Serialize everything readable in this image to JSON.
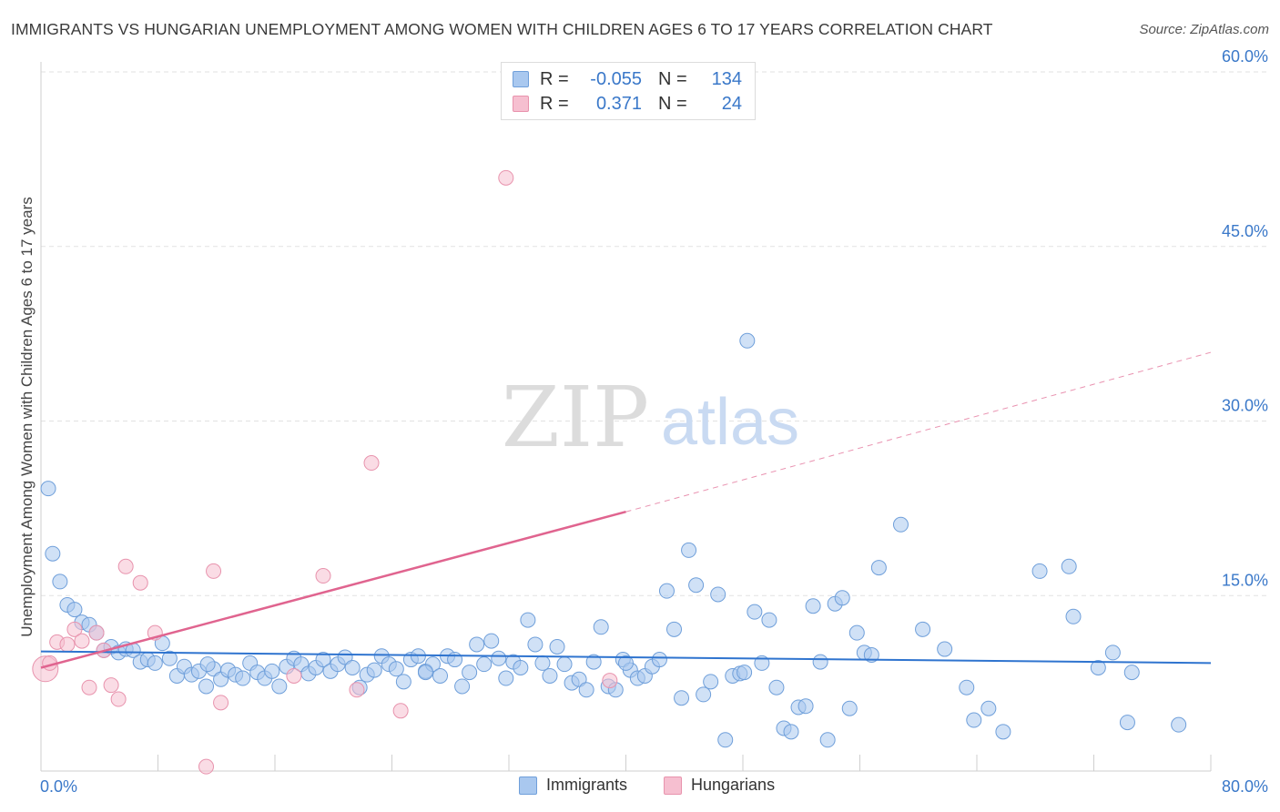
{
  "title": "IMMIGRANTS VS HUNGARIAN UNEMPLOYMENT AMONG WOMEN WITH CHILDREN AGES 6 TO 17 YEARS CORRELATION CHART",
  "source": "Source: ZipAtlas.com",
  "watermark": {
    "zip": "ZIP",
    "atlas": "atlas"
  },
  "colors": {
    "immigrants_fill": "#a9c8ef",
    "immigrants_stroke": "#6f9fda",
    "immigrants_line": "#2f74cf",
    "hungarians_fill": "#f6bfd0",
    "hungarians_stroke": "#e893ad",
    "hungarians_line": "#e0648f",
    "tick_label": "#3a78c9",
    "grid": "#e2e2e2"
  },
  "legend_top": [
    {
      "name": "Immigrants",
      "r_label": "R =",
      "r_value": "-0.055",
      "n_label": "N =",
      "n_value": "134"
    },
    {
      "name": "Hungarians",
      "r_label": "R =",
      "r_value": "0.371",
      "n_label": "N =",
      "n_value": "24"
    }
  ],
  "legend_bottom": [
    "Immigrants",
    "Hungarians"
  ],
  "chart_data": {
    "type": "scatter",
    "title": "IMMIGRANTS VS HUNGARIAN UNEMPLOYMENT AMONG WOMEN WITH CHILDREN AGES 6 TO 17 YEARS CORRELATION CHART",
    "xlabel": "",
    "ylabel": "Unemployment Among Women with Children Ages 6 to 17 years",
    "xlim": [
      0,
      80
    ],
    "ylim": [
      0,
      60
    ],
    "x_tick_labels": [
      "0.0%",
      "80.0%"
    ],
    "y_ticks": [
      15,
      30,
      45,
      60
    ],
    "y_tick_labels": [
      "15.0%",
      "30.0%",
      "45.0%",
      "60.0%"
    ],
    "series": [
      {
        "name": "Immigrants",
        "r": -0.055,
        "n": 134,
        "trend": {
          "x0": 0,
          "y0": 10.2,
          "x1": 80,
          "y1": 9.2
        },
        "points": [
          [
            0.5,
            24.2
          ],
          [
            0.8,
            18.6
          ],
          [
            1.3,
            16.2
          ],
          [
            1.8,
            14.2
          ],
          [
            2.3,
            13.8
          ],
          [
            2.8,
            12.7
          ],
          [
            3.3,
            12.5
          ],
          [
            3.8,
            11.8
          ],
          [
            4.3,
            10.3
          ],
          [
            4.8,
            10.6
          ],
          [
            5.3,
            10.1
          ],
          [
            5.8,
            10.4
          ],
          [
            6.3,
            10.3
          ],
          [
            6.8,
            9.3
          ],
          [
            7.3,
            9.5
          ],
          [
            7.8,
            9.2
          ],
          [
            8.3,
            10.9
          ],
          [
            8.8,
            9.6
          ],
          [
            9.3,
            8.1
          ],
          [
            9.8,
            8.9
          ],
          [
            10.3,
            8.2
          ],
          [
            10.8,
            8.5
          ],
          [
            11.3,
            7.2
          ],
          [
            11.8,
            8.7
          ],
          [
            12.3,
            7.8
          ],
          [
            12.8,
            8.6
          ],
          [
            13.3,
            8.2
          ],
          [
            13.8,
            7.9
          ],
          [
            14.3,
            9.2
          ],
          [
            14.8,
            8.4
          ],
          [
            15.3,
            7.9
          ],
          [
            15.8,
            8.5
          ],
          [
            16.3,
            7.2
          ],
          [
            16.8,
            8.9
          ],
          [
            17.3,
            9.6
          ],
          [
            17.8,
            9.1
          ],
          [
            18.3,
            8.3
          ],
          [
            18.8,
            8.8
          ],
          [
            19.3,
            9.5
          ],
          [
            19.8,
            8.5
          ],
          [
            20.3,
            9.1
          ],
          [
            20.8,
            9.7
          ],
          [
            21.3,
            8.8
          ],
          [
            21.8,
            7.1
          ],
          [
            22.3,
            8.2
          ],
          [
            22.8,
            8.6
          ],
          [
            23.3,
            9.8
          ],
          [
            23.8,
            9.1
          ],
          [
            24.3,
            8.7
          ],
          [
            24.8,
            7.6
          ],
          [
            25.3,
            9.5
          ],
          [
            25.8,
            9.8
          ],
          [
            26.3,
            8.5
          ],
          [
            26.8,
            9.1
          ],
          [
            27.3,
            8.1
          ],
          [
            27.8,
            9.8
          ],
          [
            28.3,
            9.5
          ],
          [
            28.8,
            7.2
          ],
          [
            29.3,
            8.4
          ],
          [
            29.8,
            10.8
          ],
          [
            30.3,
            9.1
          ],
          [
            30.8,
            11.1
          ],
          [
            31.3,
            9.6
          ],
          [
            31.8,
            7.9
          ],
          [
            32.3,
            9.3
          ],
          [
            32.8,
            8.8
          ],
          [
            33.3,
            12.9
          ],
          [
            33.8,
            10.8
          ],
          [
            34.3,
            9.2
          ],
          [
            34.8,
            8.1
          ],
          [
            35.3,
            10.6
          ],
          [
            35.8,
            9.1
          ],
          [
            36.3,
            7.5
          ],
          [
            36.8,
            7.8
          ],
          [
            37.3,
            6.9
          ],
          [
            37.8,
            9.3
          ],
          [
            38.3,
            12.3
          ],
          [
            38.8,
            7.2
          ],
          [
            39.3,
            6.9
          ],
          [
            39.8,
            9.5
          ],
          [
            40.3,
            8.6
          ],
          [
            40.8,
            7.9
          ],
          [
            41.3,
            8.1
          ],
          [
            41.8,
            8.9
          ],
          [
            42.3,
            9.5
          ],
          [
            42.8,
            15.4
          ],
          [
            43.3,
            12.1
          ],
          [
            43.8,
            6.2
          ],
          [
            44.3,
            18.9
          ],
          [
            44.8,
            15.9
          ],
          [
            45.3,
            6.5
          ],
          [
            45.8,
            7.6
          ],
          [
            46.3,
            15.1
          ],
          [
            46.8,
            2.6
          ],
          [
            47.3,
            8.1
          ],
          [
            47.8,
            8.3
          ],
          [
            48.3,
            36.9
          ],
          [
            48.8,
            13.6
          ],
          [
            49.3,
            9.2
          ],
          [
            49.8,
            12.9
          ],
          [
            50.3,
            7.1
          ],
          [
            50.8,
            3.6
          ],
          [
            51.3,
            3.3
          ],
          [
            51.8,
            5.4
          ],
          [
            52.3,
            5.5
          ],
          [
            52.8,
            14.1
          ],
          [
            53.3,
            9.3
          ],
          [
            53.8,
            2.6
          ],
          [
            54.3,
            14.3
          ],
          [
            54.8,
            14.8
          ],
          [
            55.3,
            5.3
          ],
          [
            55.8,
            11.8
          ],
          [
            56.3,
            10.1
          ],
          [
            56.8,
            9.9
          ],
          [
            57.3,
            17.4
          ],
          [
            58.8,
            21.1
          ],
          [
            60.3,
            12.1
          ],
          [
            61.8,
            10.4
          ],
          [
            63.3,
            7.1
          ],
          [
            63.8,
            4.3
          ],
          [
            64.8,
            5.3
          ],
          [
            65.8,
            3.3
          ],
          [
            68.3,
            17.1
          ],
          [
            70.3,
            17.5
          ],
          [
            70.6,
            13.2
          ],
          [
            72.3,
            8.8
          ],
          [
            73.3,
            10.1
          ],
          [
            74.3,
            4.1
          ],
          [
            74.6,
            8.4
          ],
          [
            77.8,
            3.9
          ],
          [
            40.0,
            9.2
          ],
          [
            48.1,
            8.4
          ],
          [
            26.3,
            8.4
          ],
          [
            11.4,
            9.1
          ]
        ]
      },
      {
        "name": "Hungarians",
        "r": 0.371,
        "n": 24,
        "trend": {
          "x0": 0,
          "y0": 8.8,
          "x1": 40,
          "y1": 22.2
        },
        "trend_dashed": {
          "x0": 40,
          "y0": 22.2,
          "x1": 80,
          "y1": 35.9
        },
        "points": [
          [
            0.3,
            8.7
          ],
          [
            0.6,
            9.2
          ],
          [
            1.1,
            11.0
          ],
          [
            1.8,
            10.8
          ],
          [
            2.3,
            12.1
          ],
          [
            2.8,
            11.1
          ],
          [
            3.3,
            7.1
          ],
          [
            3.8,
            11.8
          ],
          [
            4.3,
            10.3
          ],
          [
            4.8,
            7.3
          ],
          [
            5.3,
            6.1
          ],
          [
            5.8,
            17.5
          ],
          [
            6.8,
            16.1
          ],
          [
            7.8,
            11.8
          ],
          [
            11.3,
            0.3
          ],
          [
            11.8,
            17.1
          ],
          [
            12.3,
            5.8
          ],
          [
            17.3,
            8.1
          ],
          [
            19.3,
            16.7
          ],
          [
            21.6,
            6.9
          ],
          [
            22.6,
            26.4
          ],
          [
            24.6,
            5.1
          ],
          [
            31.8,
            50.9
          ],
          [
            38.9,
            7.7
          ]
        ]
      }
    ]
  }
}
